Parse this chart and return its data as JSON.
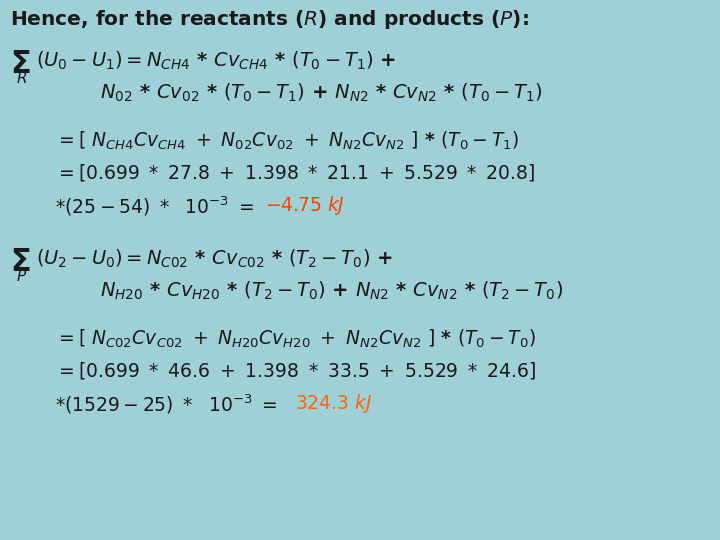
{
  "bg_color": "#9fd0d8",
  "text_color": "#1a1a1a",
  "highlight_color_red": "#ff4400",
  "highlight_color_orange": "#ff6600",
  "figsize": [
    7.2,
    5.4
  ],
  "dpi": 100
}
